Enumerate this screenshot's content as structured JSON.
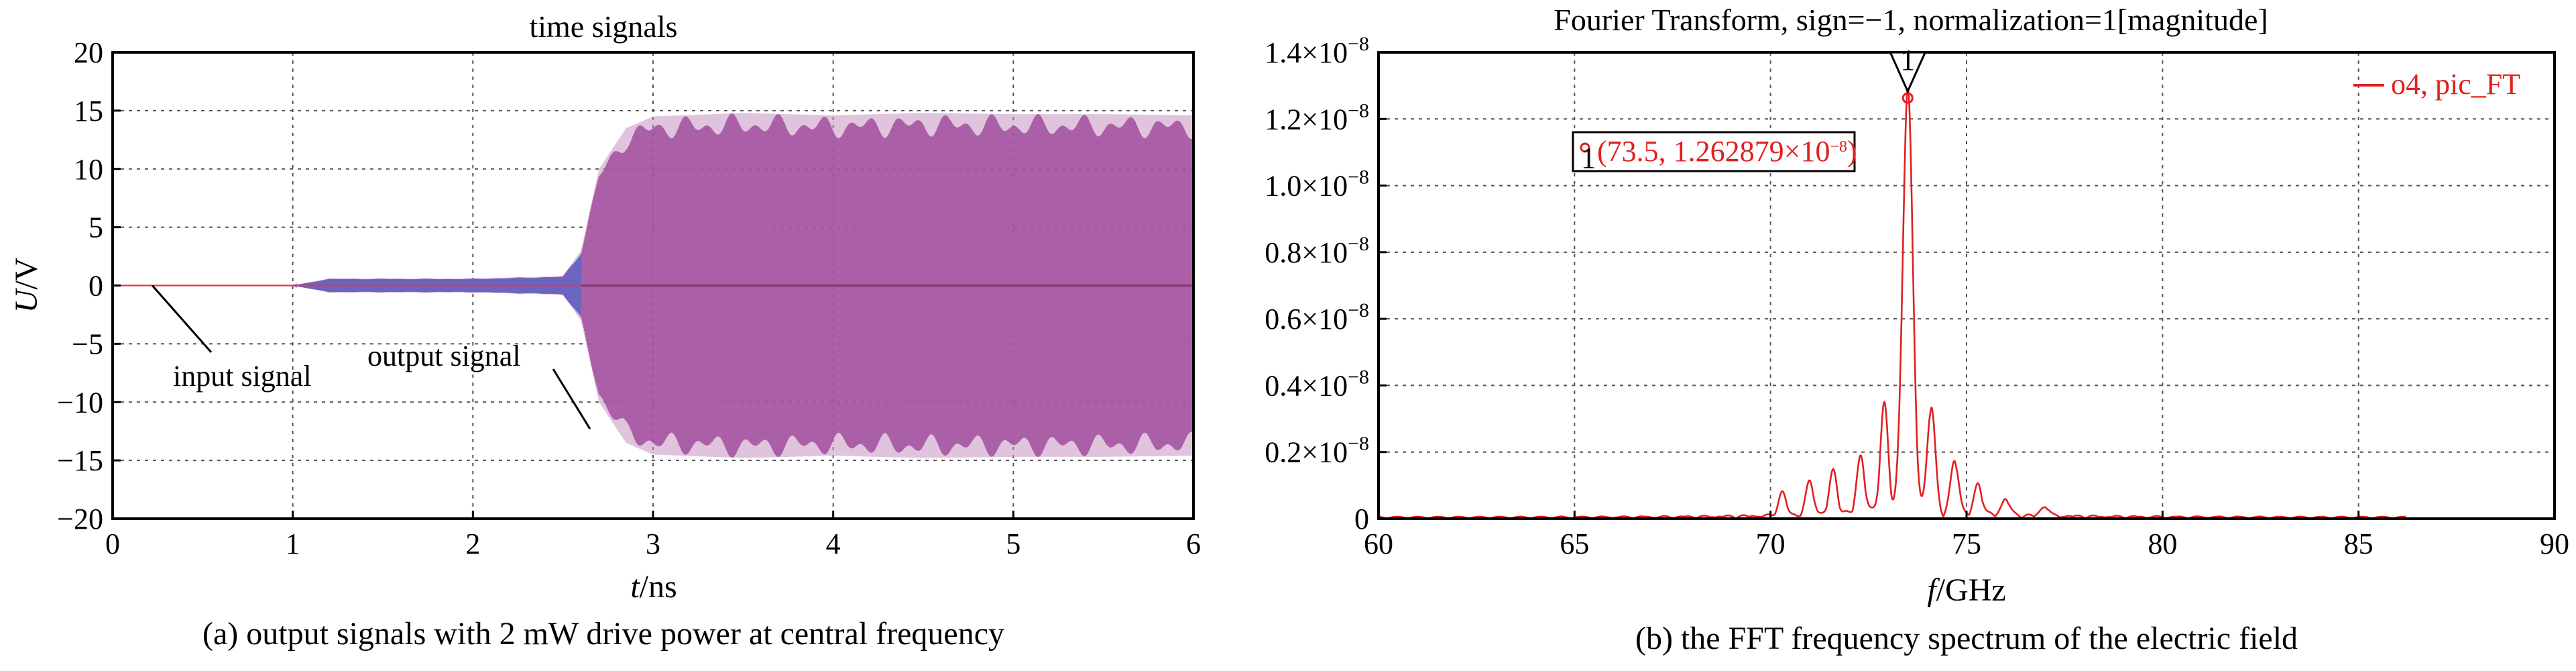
{
  "chart_data": [
    {
      "type": "line",
      "title": "time signals",
      "xlabel_var": "t",
      "xlabel_unit": "/ns",
      "ylabel_var": "U",
      "ylabel_unit": "/V",
      "xlim": [
        0,
        6
      ],
      "ylim": [
        -20,
        20
      ],
      "xticks": [
        0,
        1,
        2,
        3,
        4,
        5,
        6
      ],
      "yticks": [
        20,
        15,
        10,
        5,
        0,
        -5,
        -10,
        -15,
        -20
      ],
      "grid": true,
      "caption": "(a) output signals with 2 mW drive power at central frequency",
      "annotations": [
        {
          "label": "input signal",
          "point": [
            0.22,
            0
          ]
        },
        {
          "label": "output signal",
          "point": [
            2.65,
            -12.3
          ]
        }
      ],
      "series": [
        {
          "name": "input signal",
          "color": "#e8344a",
          "envelope": {
            "t": [
              0,
              6
            ],
            "amp": [
              0.15,
              0.15
            ]
          }
        },
        {
          "name": "output signal",
          "color": "#a04d9c",
          "envelope": {
            "t": [
              0,
              1.0,
              1.2,
              2.0,
              2.5,
              2.6,
              2.7,
              2.85,
              3.0,
              3.5,
              4.0,
              4.5,
              5.0,
              5.5,
              6.0
            ],
            "amp": [
              0,
              0,
              0.6,
              0.6,
              0.8,
              3.0,
              10.0,
              13.5,
              14.5,
              14.8,
              14.6,
              14.8,
              14.7,
              14.7,
              14.6
            ]
          }
        }
      ]
    },
    {
      "type": "line",
      "title": "Fourier Transform, sign=−1, normalization=1[magnitude]",
      "xlabel_var": "f",
      "xlabel_unit": "/GHz",
      "xlim": [
        60,
        90
      ],
      "ylim": [
        0,
        1.4e-08
      ],
      "xticks": [
        60,
        65,
        70,
        75,
        80,
        85,
        90
      ],
      "ytick_labels": [
        "0",
        "0.2×10",
        "0.4×10",
        "0.6×10",
        "0.8×10",
        "1.0×10",
        "1.2×10",
        "1.4×10"
      ],
      "ytick_exponent": "−8",
      "grid": true,
      "caption": "(b) the FFT frequency spectrum of the electric field",
      "legend": {
        "label": "o4, pic_FT",
        "position": "top-right"
      },
      "marker": {
        "id": "1",
        "x": 73.5,
        "y": 1.262879e-08,
        "label_prefix": "(73.5, 1.262879×10",
        "label_exp": "−8",
        "label_suffix": ")"
      },
      "series": [
        {
          "name": "o4, pic_FT",
          "color": "#e02020",
          "peak_x": 73.5,
          "peak_y": 1.262879e-08,
          "sidelobes": [
            {
              "x": 72.9,
              "y": 3.2e-09
            },
            {
              "x": 74.1,
              "y": 3.2e-09
            },
            {
              "x": 72.3,
              "y": 1.7e-09
            },
            {
              "x": 74.7,
              "y": 1.6e-09
            },
            {
              "x": 71.6,
              "y": 1.3e-09
            },
            {
              "x": 75.3,
              "y": 9e-10
            },
            {
              "x": 71.0,
              "y": 1e-09
            },
            {
              "x": 76.0,
              "y": 5e-10
            },
            {
              "x": 70.3,
              "y": 7e-10
            },
            {
              "x": 77.0,
              "y": 3e-10
            }
          ]
        }
      ]
    }
  ]
}
